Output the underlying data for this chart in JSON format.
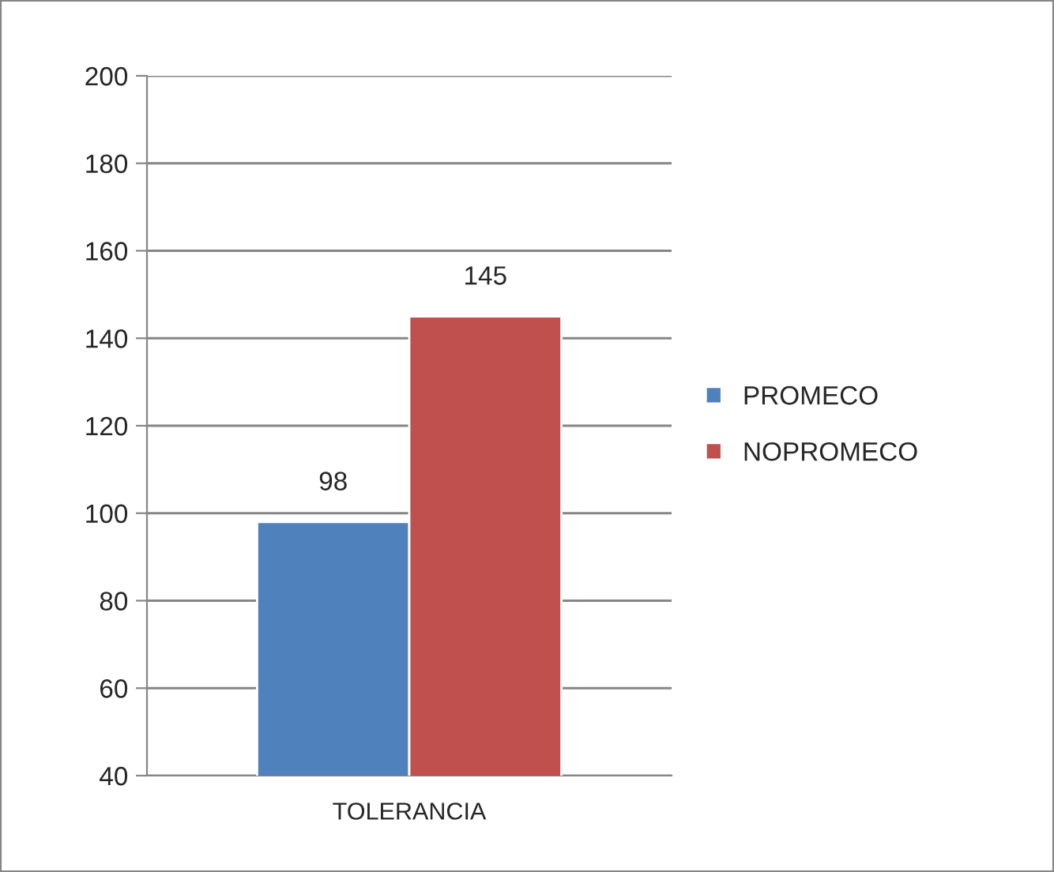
{
  "chart_data": {
    "type": "bar",
    "categories": [
      "TOLERANCIA"
    ],
    "series": [
      {
        "name": "PROMECO",
        "color": "#4f81bd",
        "values": [
          98
        ]
      },
      {
        "name": "NOPROMECO",
        "color": "#c0504d",
        "values": [
          145
        ]
      }
    ],
    "ylim": [
      40,
      200
    ],
    "yticks": [
      40,
      60,
      80,
      100,
      120,
      140,
      160,
      180,
      200
    ],
    "grid": "y",
    "legend": "right",
    "data_labels": true
  }
}
